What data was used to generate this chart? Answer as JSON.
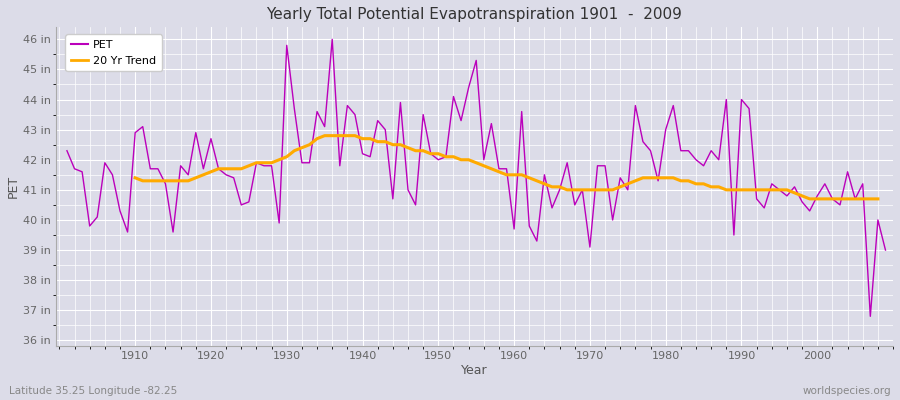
{
  "title": "Yearly Total Potential Evapotranspiration 1901  -  2009",
  "xlabel": "Year",
  "ylabel": "PET",
  "pet_color": "#bb00bb",
  "trend_color": "#ffaa00",
  "bg_color": "#dcdce8",
  "plot_bg_color": "#dcdce8",
  "years": [
    1901,
    1902,
    1903,
    1904,
    1905,
    1906,
    1907,
    1908,
    1909,
    1910,
    1911,
    1912,
    1913,
    1914,
    1915,
    1916,
    1917,
    1918,
    1919,
    1920,
    1921,
    1922,
    1923,
    1924,
    1925,
    1926,
    1927,
    1928,
    1929,
    1930,
    1931,
    1932,
    1933,
    1934,
    1935,
    1936,
    1937,
    1938,
    1939,
    1940,
    1941,
    1942,
    1943,
    1944,
    1945,
    1946,
    1947,
    1948,
    1949,
    1950,
    1951,
    1952,
    1953,
    1954,
    1955,
    1956,
    1957,
    1958,
    1959,
    1960,
    1961,
    1962,
    1963,
    1964,
    1965,
    1966,
    1967,
    1968,
    1969,
    1970,
    1971,
    1972,
    1973,
    1974,
    1975,
    1976,
    1977,
    1978,
    1979,
    1980,
    1981,
    1982,
    1983,
    1984,
    1985,
    1986,
    1987,
    1988,
    1989,
    1990,
    1991,
    1992,
    1993,
    1994,
    1995,
    1996,
    1997,
    1998,
    1999,
    2000,
    2001,
    2002,
    2003,
    2004,
    2005,
    2006,
    2007,
    2008,
    2009
  ],
  "pet_values": [
    42.3,
    41.7,
    41.6,
    39.8,
    40.1,
    41.9,
    41.5,
    40.3,
    39.6,
    42.9,
    43.1,
    41.7,
    41.7,
    41.2,
    39.6,
    41.8,
    41.5,
    42.9,
    41.7,
    42.7,
    41.7,
    41.5,
    41.4,
    40.5,
    40.6,
    41.9,
    41.8,
    41.8,
    39.9,
    45.8,
    43.7,
    41.9,
    41.9,
    43.6,
    43.1,
    46.0,
    41.8,
    43.8,
    43.5,
    42.2,
    42.1,
    43.3,
    43.0,
    40.7,
    43.9,
    41.0,
    40.5,
    43.5,
    42.2,
    42.0,
    42.1,
    44.1,
    43.3,
    44.4,
    45.3,
    42.0,
    43.2,
    41.7,
    41.7,
    39.7,
    43.6,
    39.8,
    39.3,
    41.5,
    40.4,
    41.0,
    41.9,
    40.5,
    41.0,
    39.1,
    41.8,
    41.8,
    40.0,
    41.4,
    41.0,
    43.8,
    42.6,
    42.3,
    41.3,
    43.0,
    43.8,
    42.3,
    42.3,
    42.0,
    41.8,
    42.3,
    42.0,
    44.0,
    39.5,
    44.0,
    43.7,
    40.7,
    40.4,
    41.2,
    41.0,
    40.8,
    41.1,
    40.6,
    40.3,
    40.8,
    41.2,
    40.7,
    40.5,
    41.6,
    40.7,
    41.2,
    36.8,
    40.0,
    39.0
  ],
  "trend_values": [
    null,
    null,
    null,
    null,
    null,
    null,
    null,
    null,
    null,
    41.4,
    41.3,
    41.3,
    41.3,
    41.3,
    41.3,
    41.3,
    41.3,
    41.4,
    41.5,
    41.6,
    41.7,
    41.7,
    41.7,
    41.7,
    41.8,
    41.9,
    41.9,
    41.9,
    42.0,
    42.1,
    42.3,
    42.4,
    42.5,
    42.7,
    42.8,
    42.8,
    42.8,
    42.8,
    42.8,
    42.7,
    42.7,
    42.6,
    42.6,
    42.5,
    42.5,
    42.4,
    42.3,
    42.3,
    42.2,
    42.2,
    42.1,
    42.1,
    42.0,
    42.0,
    41.9,
    41.8,
    41.7,
    41.6,
    41.5,
    41.5,
    41.5,
    41.4,
    41.3,
    41.2,
    41.1,
    41.1,
    41.0,
    41.0,
    41.0,
    41.0,
    41.0,
    41.0,
    41.0,
    41.1,
    41.2,
    41.3,
    41.4,
    41.4,
    41.4,
    41.4,
    41.4,
    41.3,
    41.3,
    41.2,
    41.2,
    41.1,
    41.1,
    41.0,
    41.0,
    41.0,
    41.0,
    41.0,
    41.0,
    41.0,
    41.0,
    41.0,
    40.9,
    40.8,
    40.7,
    40.7,
    40.7,
    40.7,
    40.7,
    40.7,
    40.7,
    40.7,
    40.7,
    40.7
  ],
  "ylim": [
    35.8,
    46.4
  ],
  "yticks": [
    36,
    37,
    38,
    39,
    40,
    41,
    42,
    43,
    44,
    45,
    46
  ],
  "ytick_labels": [
    "36 in",
    "37 in",
    "38 in",
    "39 in",
    "40 in",
    "41 in",
    "42 in",
    "43 in",
    "44 in",
    "45 in",
    "46 in"
  ],
  "xlim": [
    1899.5,
    2010
  ],
  "xticks": [
    1910,
    1920,
    1930,
    1940,
    1950,
    1960,
    1970,
    1980,
    1990,
    2000
  ],
  "footer_left": "Latitude 35.25 Longitude -82.25",
  "footer_right": "worldspecies.org",
  "legend_labels": [
    "PET",
    "20 Yr Trend"
  ]
}
